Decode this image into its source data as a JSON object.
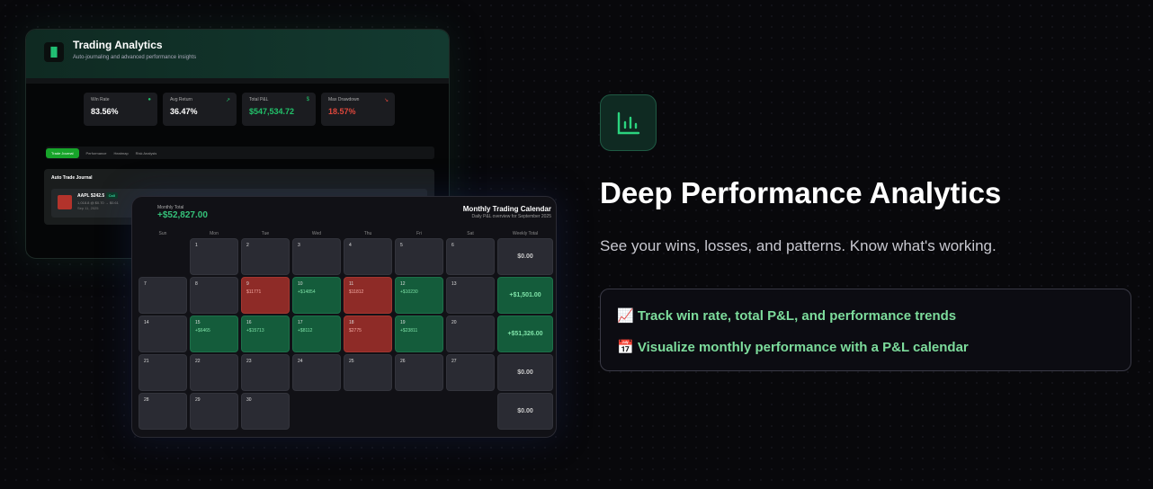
{
  "app": {
    "title": "Trading Analytics",
    "subtitle": "Auto-journaling and advanced performance insights",
    "stats": [
      {
        "label": "Win Rate",
        "value": "83.56%",
        "color": "#ffffff",
        "icon": "circle-icon"
      },
      {
        "label": "Avg Return",
        "value": "36.47%",
        "color": "#ffffff",
        "icon": "trend-up-icon"
      },
      {
        "label": "Total P&L",
        "value": "$547,534.72",
        "color": "#22c26a",
        "icon": "dollar-icon"
      },
      {
        "label": "Max Drawdown",
        "value": "18.57%",
        "color": "#e0473c",
        "icon": "trend-down-icon"
      }
    ],
    "tabs": [
      "Trade Journal",
      "Performance",
      "Heatmap",
      "Risk Analysis"
    ],
    "journal": {
      "title": "Auto Trade Journal",
      "trade": {
        "symbol": "AAPL $242.5",
        "badge": "Call",
        "detail": "1,018.8 @ $0.70 → $0.61",
        "date": "Sep 11, 2025"
      }
    }
  },
  "calendar": {
    "monthly_total_label": "Monthly Total",
    "monthly_total": "+$52,827.00",
    "title": "Monthly Trading Calendar",
    "subtitle": "Daily P&L overview for September 2025",
    "headers": [
      "Sun",
      "Mon",
      "Tue",
      "Wed",
      "Thu",
      "Fri",
      "Sat",
      "Weekly Total"
    ],
    "weeks": [
      {
        "days": [
          null,
          {
            "d": "1"
          },
          {
            "d": "2"
          },
          {
            "d": "3"
          },
          {
            "d": "4"
          },
          {
            "d": "5"
          },
          {
            "d": "6"
          }
        ],
        "total": "$0.00"
      },
      {
        "days": [
          {
            "d": "7"
          },
          {
            "d": "8"
          },
          {
            "d": "9",
            "pnl": "$11771",
            "s": "r"
          },
          {
            "d": "10",
            "pnl": "+$14854",
            "s": "g"
          },
          {
            "d": "11",
            "pnl": "$11812",
            "s": "r"
          },
          {
            "d": "12",
            "pnl": "+$10230",
            "s": "g"
          },
          {
            "d": "13"
          }
        ],
        "total": "+$1,501.00"
      },
      {
        "days": [
          {
            "d": "14"
          },
          {
            "d": "15",
            "pnl": "+$6465",
            "s": "g"
          },
          {
            "d": "16",
            "pnl": "+$15713",
            "s": "g"
          },
          {
            "d": "17",
            "pnl": "+$8112",
            "s": "g"
          },
          {
            "d": "18",
            "pnl": "$2775",
            "s": "r"
          },
          {
            "d": "19",
            "pnl": "+$23811",
            "s": "g"
          },
          {
            "d": "20"
          }
        ],
        "total": "+$51,326.00"
      },
      {
        "days": [
          {
            "d": "21"
          },
          {
            "d": "22"
          },
          {
            "d": "23"
          },
          {
            "d": "24"
          },
          {
            "d": "25"
          },
          {
            "d": "26"
          },
          {
            "d": "27"
          }
        ],
        "total": "$0.00"
      },
      {
        "days": [
          {
            "d": "28"
          },
          {
            "d": "29"
          },
          {
            "d": "30"
          },
          null,
          null,
          null,
          null
        ],
        "total": "$0.00"
      }
    ]
  },
  "feature": {
    "title": "Deep Performance Analytics",
    "subtitle": "See your wins, losses, and patterns. Know what's working.",
    "items": [
      {
        "emoji": "📈",
        "text": "Track win rate, total P&L, and performance trends"
      },
      {
        "emoji": "📅",
        "text": "Visualize monthly performance with a P&L calendar"
      }
    ]
  }
}
